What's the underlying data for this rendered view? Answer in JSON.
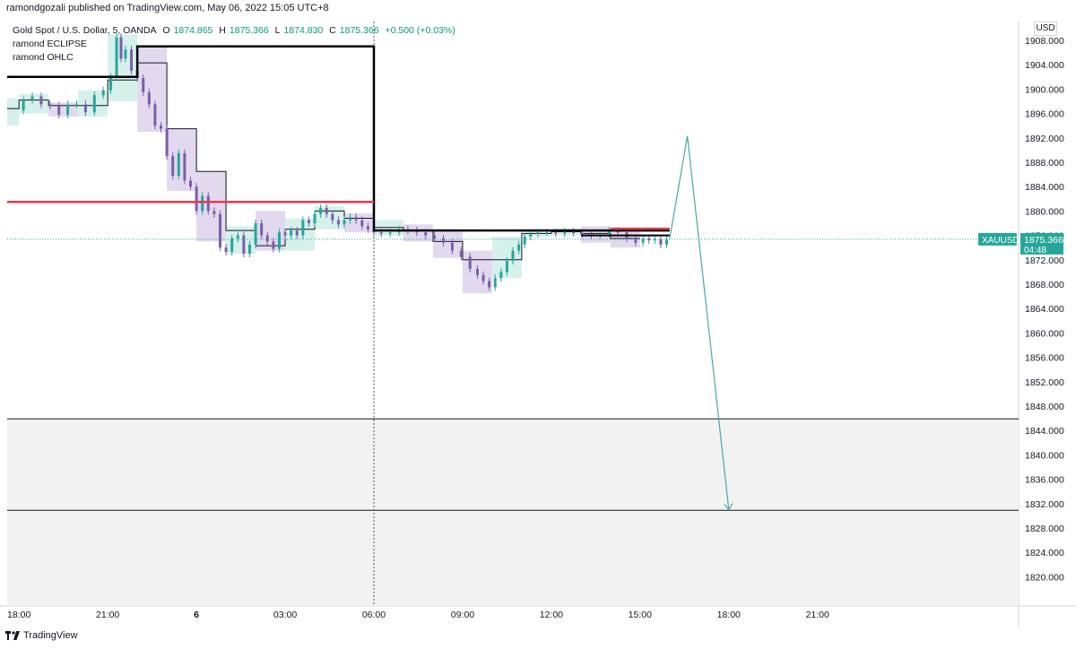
{
  "header": {
    "published": "ramondgozali published on TradingView.com, May 06, 2022 15:05 UTC+8"
  },
  "legend": {
    "symbol": "Gold Spot / U.S. Dollar, 5, OANDA",
    "o_label": "O",
    "o": "1874.865",
    "h_label": "H",
    "h": "1875.366",
    "l_label": "L",
    "l": "1874.830",
    "c_label": "C",
    "c": "1875.366",
    "change": "+0.500 (+0.03%)",
    "indicator1": "ramond ECLIPSE",
    "indicator2": "ramond OHLC"
  },
  "currency": "USD",
  "price_tag": {
    "symbol": "XAUUSD",
    "price": "1875.366",
    "countdown": "04:48"
  },
  "footer": {
    "brand": "TradingView"
  },
  "colors": {
    "up": "#26a69a",
    "down": "#7b5ea7",
    "red_line": "#e53950",
    "teal_box": "#d6f0ec",
    "purple_box": "#e2d9ef",
    "zone": "#f2f2f2",
    "arrow": "#4aa8a0"
  },
  "chart_data": {
    "type": "candlestick",
    "symbol": "XAUUSD",
    "timeframe": "5",
    "ylim": [
      1816,
      1910
    ],
    "y_ticks": [
      1908,
      1904,
      1900,
      1896,
      1892,
      1888,
      1884,
      1880,
      1876,
      1872,
      1868,
      1864,
      1860,
      1856,
      1852,
      1848,
      1844,
      1840,
      1836,
      1832,
      1828,
      1824,
      1820
    ],
    "y_tick_labels": [
      "1908.000",
      "1904.000",
      "1900.000",
      "1896.000",
      "1892.000",
      "1888.000",
      "1884.000",
      "1880.000",
      "1876.000",
      "1872.000",
      "1868.000",
      "1864.000",
      "1860.000",
      "1856.000",
      "1852.000",
      "1848.000",
      "1844.000",
      "1840.000",
      "1836.000",
      "1832.000",
      "1828.000",
      "1824.000",
      "1820.000"
    ],
    "x_range_hours": [
      -6.4,
      27.8
    ],
    "x_ticks": [
      {
        "t": -6,
        "label": "18:00",
        "bold": false
      },
      {
        "t": -3,
        "label": "21:00",
        "bold": false
      },
      {
        "t": 0,
        "label": "6",
        "bold": true
      },
      {
        "t": 3,
        "label": "03:00",
        "bold": false
      },
      {
        "t": 6,
        "label": "06:00",
        "bold": false
      },
      {
        "t": 9,
        "label": "09:00",
        "bold": false
      },
      {
        "t": 12,
        "label": "12:00",
        "bold": false
      },
      {
        "t": 15,
        "label": "15:00",
        "bold": false
      },
      {
        "t": 18,
        "label": "18:00",
        "bold": false
      },
      {
        "t": 21,
        "label": "21:00",
        "bold": false
      }
    ],
    "last_price": 1875.366,
    "vertical_marker_t": 6,
    "path_points": [
      [
        -6.0,
        1896.5
      ],
      [
        -5.7,
        1898.2
      ],
      [
        -5.4,
        1898.8
      ],
      [
        -5.1,
        1897.5
      ],
      [
        -4.8,
        1897.3
      ],
      [
        -4.5,
        1895.8
      ],
      [
        -4.2,
        1897.5
      ],
      [
        -3.9,
        1897.5
      ],
      [
        -3.6,
        1896.2
      ],
      [
        -3.3,
        1899.0
      ],
      [
        -3.0,
        1899.8
      ],
      [
        -2.8,
        1902.0
      ],
      [
        -2.6,
        1908.5
      ],
      [
        -2.5,
        1905.0
      ],
      [
        -2.3,
        1906.5
      ],
      [
        -2.1,
        1903.0
      ],
      [
        -1.9,
        1901.8
      ],
      [
        -1.7,
        1899.5
      ],
      [
        -1.5,
        1897.5
      ],
      [
        -1.3,
        1894.0
      ],
      [
        -1.1,
        1893.5
      ],
      [
        -0.9,
        1889.0
      ],
      [
        -0.7,
        1885.8
      ],
      [
        -0.5,
        1889.5
      ],
      [
        -0.3,
        1885.0
      ],
      [
        -0.1,
        1884.0
      ],
      [
        0.1,
        1880.0
      ],
      [
        0.3,
        1882.5
      ],
      [
        0.5,
        1880.0
      ],
      [
        0.7,
        1879.5
      ],
      [
        0.9,
        1874.0
      ],
      [
        1.1,
        1873.3
      ],
      [
        1.3,
        1875.5
      ],
      [
        1.5,
        1876.0
      ],
      [
        1.7,
        1873.0
      ],
      [
        1.9,
        1874.5
      ],
      [
        2.1,
        1878.0
      ],
      [
        2.3,
        1876.0
      ],
      [
        2.5,
        1875.0
      ],
      [
        2.7,
        1873.8
      ],
      [
        2.9,
        1876.5
      ],
      [
        3.1,
        1876.0
      ],
      [
        3.3,
        1876.8
      ],
      [
        3.5,
        1876.0
      ],
      [
        3.7,
        1878.5
      ],
      [
        3.9,
        1878.0
      ],
      [
        4.1,
        1879.5
      ],
      [
        4.3,
        1880.5
      ],
      [
        4.5,
        1879.5
      ],
      [
        4.7,
        1878.5
      ],
      [
        4.9,
        1877.8
      ],
      [
        5.1,
        1878.5
      ],
      [
        5.3,
        1879.0
      ],
      [
        5.5,
        1878.5
      ],
      [
        5.7,
        1877.5
      ],
      [
        5.9,
        1877.0
      ],
      [
        6.1,
        1876.5
      ],
      [
        6.4,
        1876.3
      ],
      [
        6.7,
        1876.5
      ],
      [
        7.0,
        1877.0
      ],
      [
        7.3,
        1876.8
      ],
      [
        7.6,
        1876.5
      ],
      [
        7.9,
        1876.0
      ],
      [
        8.2,
        1875.5
      ],
      [
        8.5,
        1874.8
      ],
      [
        8.8,
        1873.5
      ],
      [
        9.1,
        1872.5
      ],
      [
        9.4,
        1870.5
      ],
      [
        9.6,
        1869.5
      ],
      [
        9.8,
        1868.5
      ],
      [
        10.0,
        1867.5
      ],
      [
        10.2,
        1869.0
      ],
      [
        10.4,
        1870.0
      ],
      [
        10.6,
        1871.8
      ],
      [
        10.8,
        1873.5
      ],
      [
        11.0,
        1874.5
      ],
      [
        11.2,
        1875.8
      ],
      [
        11.4,
        1876.3
      ],
      [
        11.7,
        1876.5
      ],
      [
        12.0,
        1876.5
      ],
      [
        12.3,
        1876.3
      ],
      [
        12.6,
        1876.6
      ],
      [
        12.9,
        1876.4
      ],
      [
        13.2,
        1876.2
      ],
      [
        13.5,
        1876.0
      ],
      [
        13.8,
        1876.3
      ],
      [
        14.1,
        1876.8
      ],
      [
        14.4,
        1876.5
      ],
      [
        14.7,
        1875.5
      ],
      [
        15.0,
        1874.8
      ],
      [
        15.2,
        1875.5
      ],
      [
        15.4,
        1875.2
      ],
      [
        15.6,
        1875.4
      ],
      [
        15.8,
        1874.5
      ],
      [
        16.0,
        1875.366
      ]
    ],
    "range_boxes": [
      {
        "t0": -6.4,
        "t1": -6.0,
        "low": 1894.0,
        "high": 1898.5,
        "color": "teal"
      },
      {
        "t0": -6.0,
        "t1": -5.0,
        "low": 1896.0,
        "high": 1899.2,
        "color": "teal"
      },
      {
        "t0": -5.0,
        "t1": -4.0,
        "low": 1895.5,
        "high": 1897.8,
        "color": "purple"
      },
      {
        "t0": -4.0,
        "t1": -3.0,
        "low": 1895.5,
        "high": 1899.8,
        "color": "teal"
      },
      {
        "t0": -3.0,
        "t1": -2.0,
        "low": 1898.0,
        "high": 1909.0,
        "color": "teal"
      },
      {
        "t0": -2.0,
        "t1": -1.0,
        "low": 1893.0,
        "high": 1907.0,
        "color": "purple"
      },
      {
        "t0": -1.0,
        "t1": 0.0,
        "low": 1883.3,
        "high": 1893.5,
        "color": "purple"
      },
      {
        "t0": 0.0,
        "t1": 1.0,
        "low": 1875.0,
        "high": 1886.5,
        "color": "purple"
      },
      {
        "t0": 1.0,
        "t1": 2.0,
        "low": 1873.0,
        "high": 1877.5,
        "color": "teal"
      },
      {
        "t0": 2.0,
        "t1": 3.0,
        "low": 1873.5,
        "high": 1880.0,
        "color": "purple"
      },
      {
        "t0": 3.0,
        "t1": 4.0,
        "low": 1873.5,
        "high": 1878.8,
        "color": "teal"
      },
      {
        "t0": 4.0,
        "t1": 5.0,
        "low": 1877.0,
        "high": 1880.8,
        "color": "teal"
      },
      {
        "t0": 5.0,
        "t1": 6.0,
        "low": 1876.5,
        "high": 1879.6,
        "color": "purple"
      },
      {
        "t0": 6.0,
        "t1": 7.0,
        "low": 1876.0,
        "high": 1878.5,
        "color": "teal"
      },
      {
        "t0": 7.0,
        "t1": 8.0,
        "low": 1875.0,
        "high": 1877.8,
        "color": "purple"
      },
      {
        "t0": 8.0,
        "t1": 9.0,
        "low": 1872.3,
        "high": 1876.6,
        "color": "purple"
      },
      {
        "t0": 9.0,
        "t1": 10.0,
        "low": 1866.5,
        "high": 1873.5,
        "color": "purple"
      },
      {
        "t0": 10.0,
        "t1": 11.0,
        "low": 1869.0,
        "high": 1875.8,
        "color": "teal"
      },
      {
        "t0": 11.0,
        "t1": 12.0,
        "low": 1875.8,
        "high": 1877.0,
        "color": "teal"
      },
      {
        "t0": 12.0,
        "t1": 13.0,
        "low": 1876.0,
        "high": 1877.2,
        "color": "teal"
      },
      {
        "t0": 13.0,
        "t1": 14.0,
        "low": 1874.8,
        "high": 1877.5,
        "color": "purple"
      },
      {
        "t0": 14.0,
        "t1": 15.0,
        "low": 1874.0,
        "high": 1876.6,
        "color": "purple"
      }
    ],
    "ohlc_steps": [
      [
        -6.4,
        -6.0,
        1896.8
      ],
      [
        -6.0,
        -5.0,
        1898.2
      ],
      [
        -5.0,
        -4.0,
        1897.3
      ],
      [
        -4.0,
        -3.0,
        1897.3
      ],
      [
        -3.0,
        -2.0,
        1901.5
      ],
      [
        -2.0,
        -1.0,
        1904.3
      ],
      [
        -1.0,
        0.0,
        1893.5
      ],
      [
        0.0,
        1.0,
        1886.5
      ],
      [
        1.0,
        2.0,
        1876.8
      ],
      [
        2.0,
        3.0,
        1874.3
      ],
      [
        3.0,
        4.0,
        1877.0
      ],
      [
        4.0,
        5.0,
        1880.0
      ],
      [
        5.0,
        6.0,
        1878.8
      ],
      [
        6.0,
        7.0,
        1877.3
      ],
      [
        7.0,
        8.0,
        1876.8
      ],
      [
        8.0,
        9.0,
        1875.0
      ],
      [
        9.0,
        10.0,
        1872.0
      ],
      [
        10.0,
        11.0,
        1872.0
      ],
      [
        11.0,
        12.0,
        1876.3
      ],
      [
        12.0,
        13.0,
        1876.6
      ],
      [
        13.0,
        14.0,
        1876.3
      ],
      [
        14.0,
        15.0,
        1875.5
      ]
    ],
    "eclipse_line": [
      [
        -6.4,
        1902.0
      ],
      [
        -2.0,
        1902.0
      ],
      [
        -2.0,
        1907.0
      ],
      [
        6.0,
        1907.0
      ],
      [
        6.0,
        1876.8
      ],
      [
        16.0,
        1876.8
      ]
    ],
    "red_lines": [
      {
        "t0": -6.4,
        "t1": 6.0,
        "price": 1881.5
      },
      {
        "t0": 14.0,
        "t1": 16.0,
        "price": 1877.1
      }
    ],
    "black_short_line": {
      "t0": 13.0,
      "t1": 16.0,
      "price": 1876.0
    },
    "zone": {
      "high": 1845.9,
      "low": 1830.9
    },
    "forecast_arrow": [
      [
        16.0,
        1875.4
      ],
      [
        16.6,
        1892.3
      ],
      [
        18.0,
        1831.0
      ]
    ]
  }
}
